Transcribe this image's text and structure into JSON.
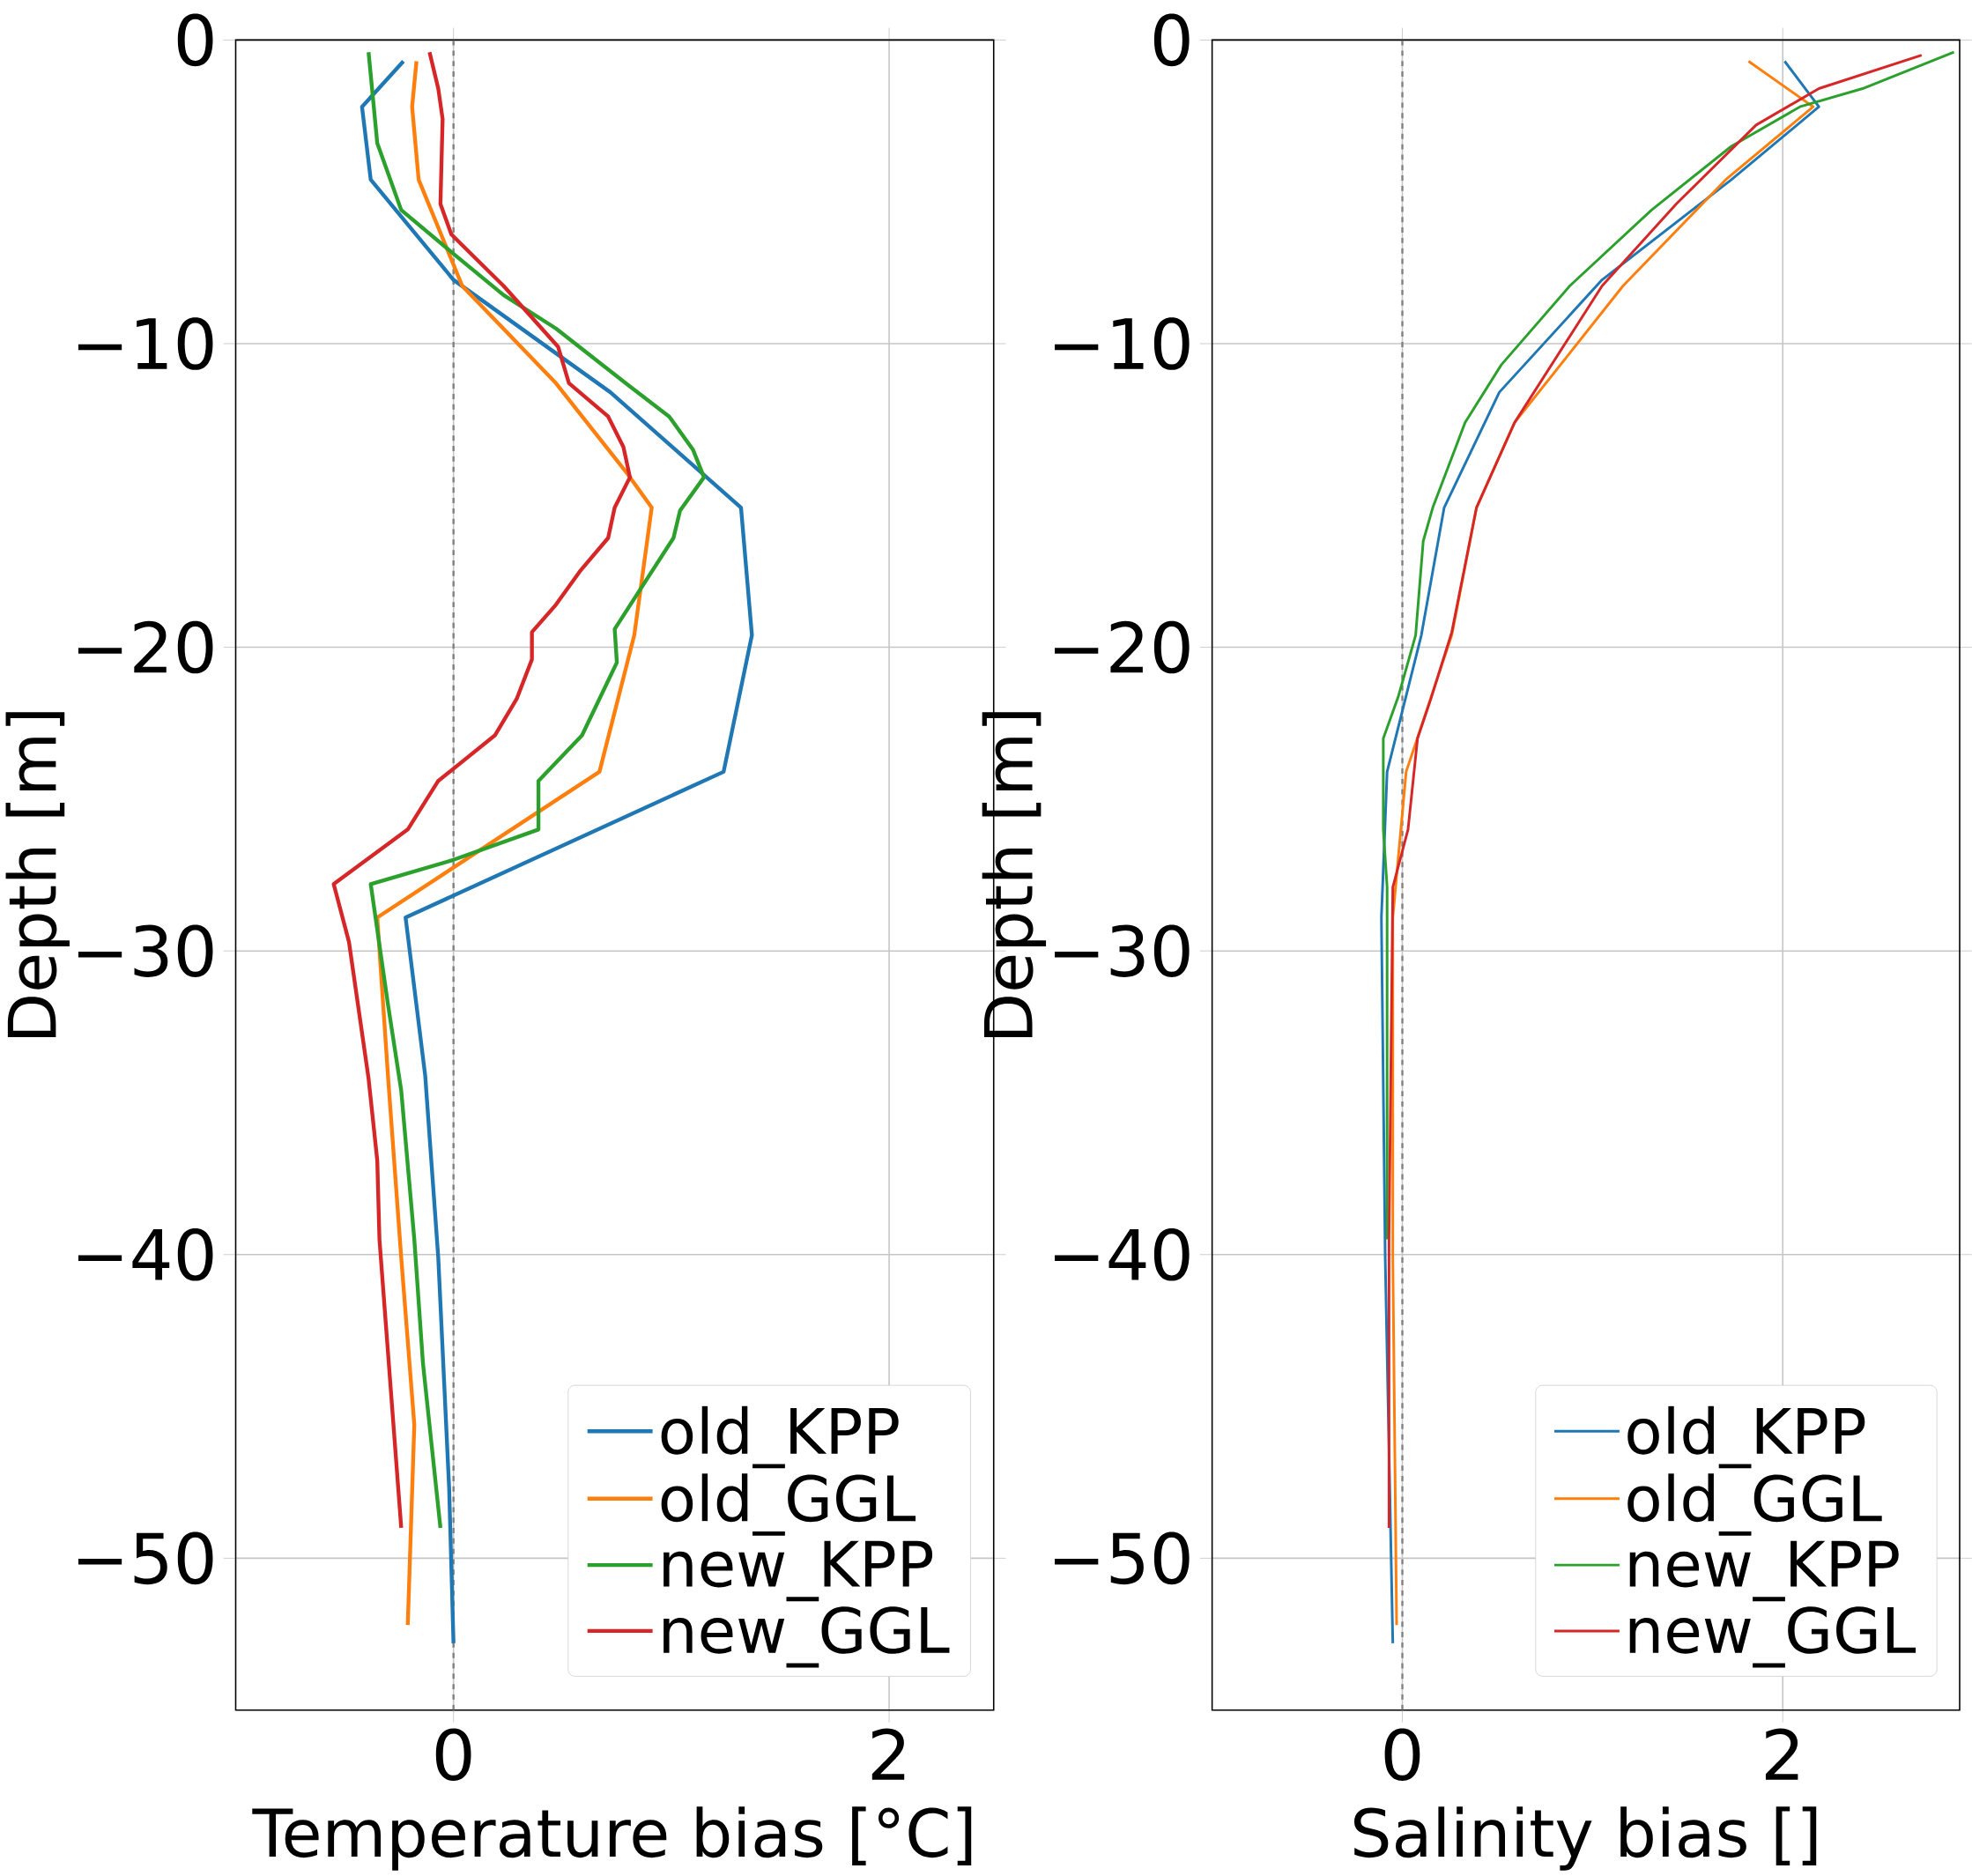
{
  "chart_data": [
    {
      "type": "line",
      "xlabel": "Temperature bias [°C]",
      "ylabel": "Depth [m]",
      "xlim": [
        -1,
        2.48
      ],
      "ylim": [
        -55,
        0
      ],
      "xticks": [
        0,
        2
      ],
      "yticks": [
        {
          "value": 0,
          "label": "0"
        },
        {
          "value": -10,
          "label": "−10"
        },
        {
          "value": -20,
          "label": "−20"
        },
        {
          "value": -30,
          "label": "−30"
        },
        {
          "value": -40,
          "label": "−40"
        },
        {
          "value": -50,
          "label": "−50"
        }
      ],
      "grid": true,
      "legend": "bottom right",
      "ref_lines": [
        {
          "axis": "x",
          "value": 0,
          "color": "#808080",
          "line_style": "dashed"
        }
      ],
      "series": [
        {
          "name": "old_KPP",
          "color": "#1f77b4",
          "x": [
            -0.23,
            -0.42,
            -0.38,
            0,
            0.72,
            1.32,
            1.37,
            1.24,
            -0.22,
            -0.13,
            -0.07,
            -0.02,
            0
          ],
          "values": [
            -0.7,
            -2.2,
            -4.6,
            -7.9,
            -11.6,
            -15.4,
            -19.6,
            -24.1,
            -28.9,
            -34.1,
            -40.1,
            -47.7,
            -52.8
          ]
        },
        {
          "name": "old_GGL",
          "color": "#ff7f0e",
          "x": [
            -0.17,
            -0.19,
            -0.16,
            0.04,
            0.47,
            0.8,
            0.91,
            0.83,
            0.67,
            -0.35,
            -0.3,
            -0.24,
            -0.18,
            -0.21
          ],
          "values": [
            -0.7,
            -2.2,
            -4.6,
            -8.1,
            -11.3,
            -14.3,
            -15.4,
            -19.6,
            -24.1,
            -28.9,
            -34.2,
            -40.1,
            -45.6,
            -52.2
          ]
        },
        {
          "name": "new_KPP",
          "color": "#2ca02c",
          "x": [
            -0.39,
            -0.35,
            -0.24,
            0.01,
            0.23,
            0.47,
            0.79,
            0.99,
            1.1,
            1.15,
            1.04,
            1.01,
            0.74,
            0.75,
            0.67,
            0.59,
            0.39,
            0.39,
            0,
            -0.38,
            -0.3,
            -0.24,
            -0.18,
            -0.14,
            -0.06
          ],
          "values": [
            -0.4,
            -3.4,
            -5.6,
            -7.1,
            -8.4,
            -9.5,
            -11.3,
            -12.4,
            -13.5,
            -14.4,
            -15.5,
            -16.4,
            -19.4,
            -20.5,
            -21.7,
            -22.9,
            -24.4,
            -26.0,
            -27.0,
            -27.8,
            -31.8,
            -34.6,
            -39.5,
            -43.6,
            -49.0
          ]
        },
        {
          "name": "new_GGL",
          "color": "#d62728",
          "x": [
            -0.11,
            -0.07,
            -0.05,
            -0.06,
            -0.01,
            0.23,
            0.48,
            0.53,
            0.71,
            0.78,
            0.81,
            0.74,
            0.71,
            0.58,
            0.47,
            0.36,
            0.36,
            0.29,
            0.19,
            -0.07,
            -0.21,
            -0.55,
            -0.48,
            -0.39,
            -0.35,
            -0.34,
            -0.24
          ],
          "values": [
            -0.4,
            -1.6,
            -2.6,
            -5.4,
            -6.4,
            -8.1,
            -10.1,
            -11.3,
            -12.4,
            -13.4,
            -14.4,
            -15.4,
            -16.4,
            -17.5,
            -18.6,
            -19.5,
            -20.4,
            -21.7,
            -22.9,
            -24.4,
            -26.0,
            -27.8,
            -29.7,
            -34.2,
            -36.9,
            -39.5,
            -49.0
          ]
        }
      ]
    },
    {
      "type": "line",
      "xlabel": "Salinity bias []",
      "ylabel": "Depth [m]",
      "xlim": [
        -1,
        2.93
      ],
      "ylim": [
        -55,
        0
      ],
      "xticks": [
        0,
        2
      ],
      "yticks": [
        {
          "value": 0,
          "label": "0"
        },
        {
          "value": -10,
          "label": "−10"
        },
        {
          "value": -20,
          "label": "−20"
        },
        {
          "value": -30,
          "label": "−30"
        },
        {
          "value": -40,
          "label": "−40"
        },
        {
          "value": -50,
          "label": "−50"
        }
      ],
      "grid": true,
      "legend": "bottom right",
      "ref_lines": [
        {
          "axis": "x",
          "value": 0,
          "color": "#808080",
          "line_style": "dashed"
        }
      ],
      "series": [
        {
          "name": "old_KPP",
          "color": "#1f77b4",
          "x": [
            2.01,
            2.19,
            1.73,
            1.05,
            0.51,
            0.22,
            0.1,
            -0.08,
            -0.11,
            -0.09,
            -0.05
          ],
          "values": [
            -0.7,
            -2.2,
            -4.6,
            -7.9,
            -11.6,
            -15.4,
            -19.6,
            -24.1,
            -28.9,
            -40.1,
            -52.8
          ]
        },
        {
          "name": "old_GGL",
          "color": "#ff7f0e",
          "x": [
            1.82,
            2.16,
            1.7,
            1.16,
            0.59,
            0.39,
            0.26,
            0.02,
            -0.05,
            -0.05,
            -0.03
          ],
          "values": [
            -0.7,
            -2.2,
            -4.6,
            -8.1,
            -12.6,
            -15.4,
            -19.6,
            -24.1,
            -28.9,
            -40.1,
            -52.2
          ]
        },
        {
          "name": "new_KPP",
          "color": "#2ca02c",
          "x": [
            2.9,
            2.42,
            2.09,
            1.73,
            1.31,
            0.88,
            0.52,
            0.33,
            0.16,
            0.11,
            0.07,
            -0.02,
            -0.1,
            -0.1,
            -0.08,
            -0.08
          ],
          "values": [
            -0.4,
            -1.6,
            -2.2,
            -3.5,
            -5.6,
            -8.1,
            -10.7,
            -12.6,
            -15.4,
            -16.5,
            -19.6,
            -21.6,
            -23.0,
            -26.0,
            -27.9,
            -39.5
          ]
        },
        {
          "name": "new_GGL",
          "color": "#d62728",
          "x": [
            2.73,
            2.19,
            1.86,
            1.44,
            1.05,
            0.59,
            0.39,
            0.26,
            0.15,
            0.08,
            0.03,
            -0.05,
            -0.07,
            -0.07
          ],
          "values": [
            -0.5,
            -1.6,
            -2.8,
            -5.4,
            -8.1,
            -12.6,
            -15.4,
            -19.5,
            -21.7,
            -23.0,
            -26.0,
            -27.9,
            -39.5,
            -49.0
          ]
        }
      ]
    }
  ]
}
